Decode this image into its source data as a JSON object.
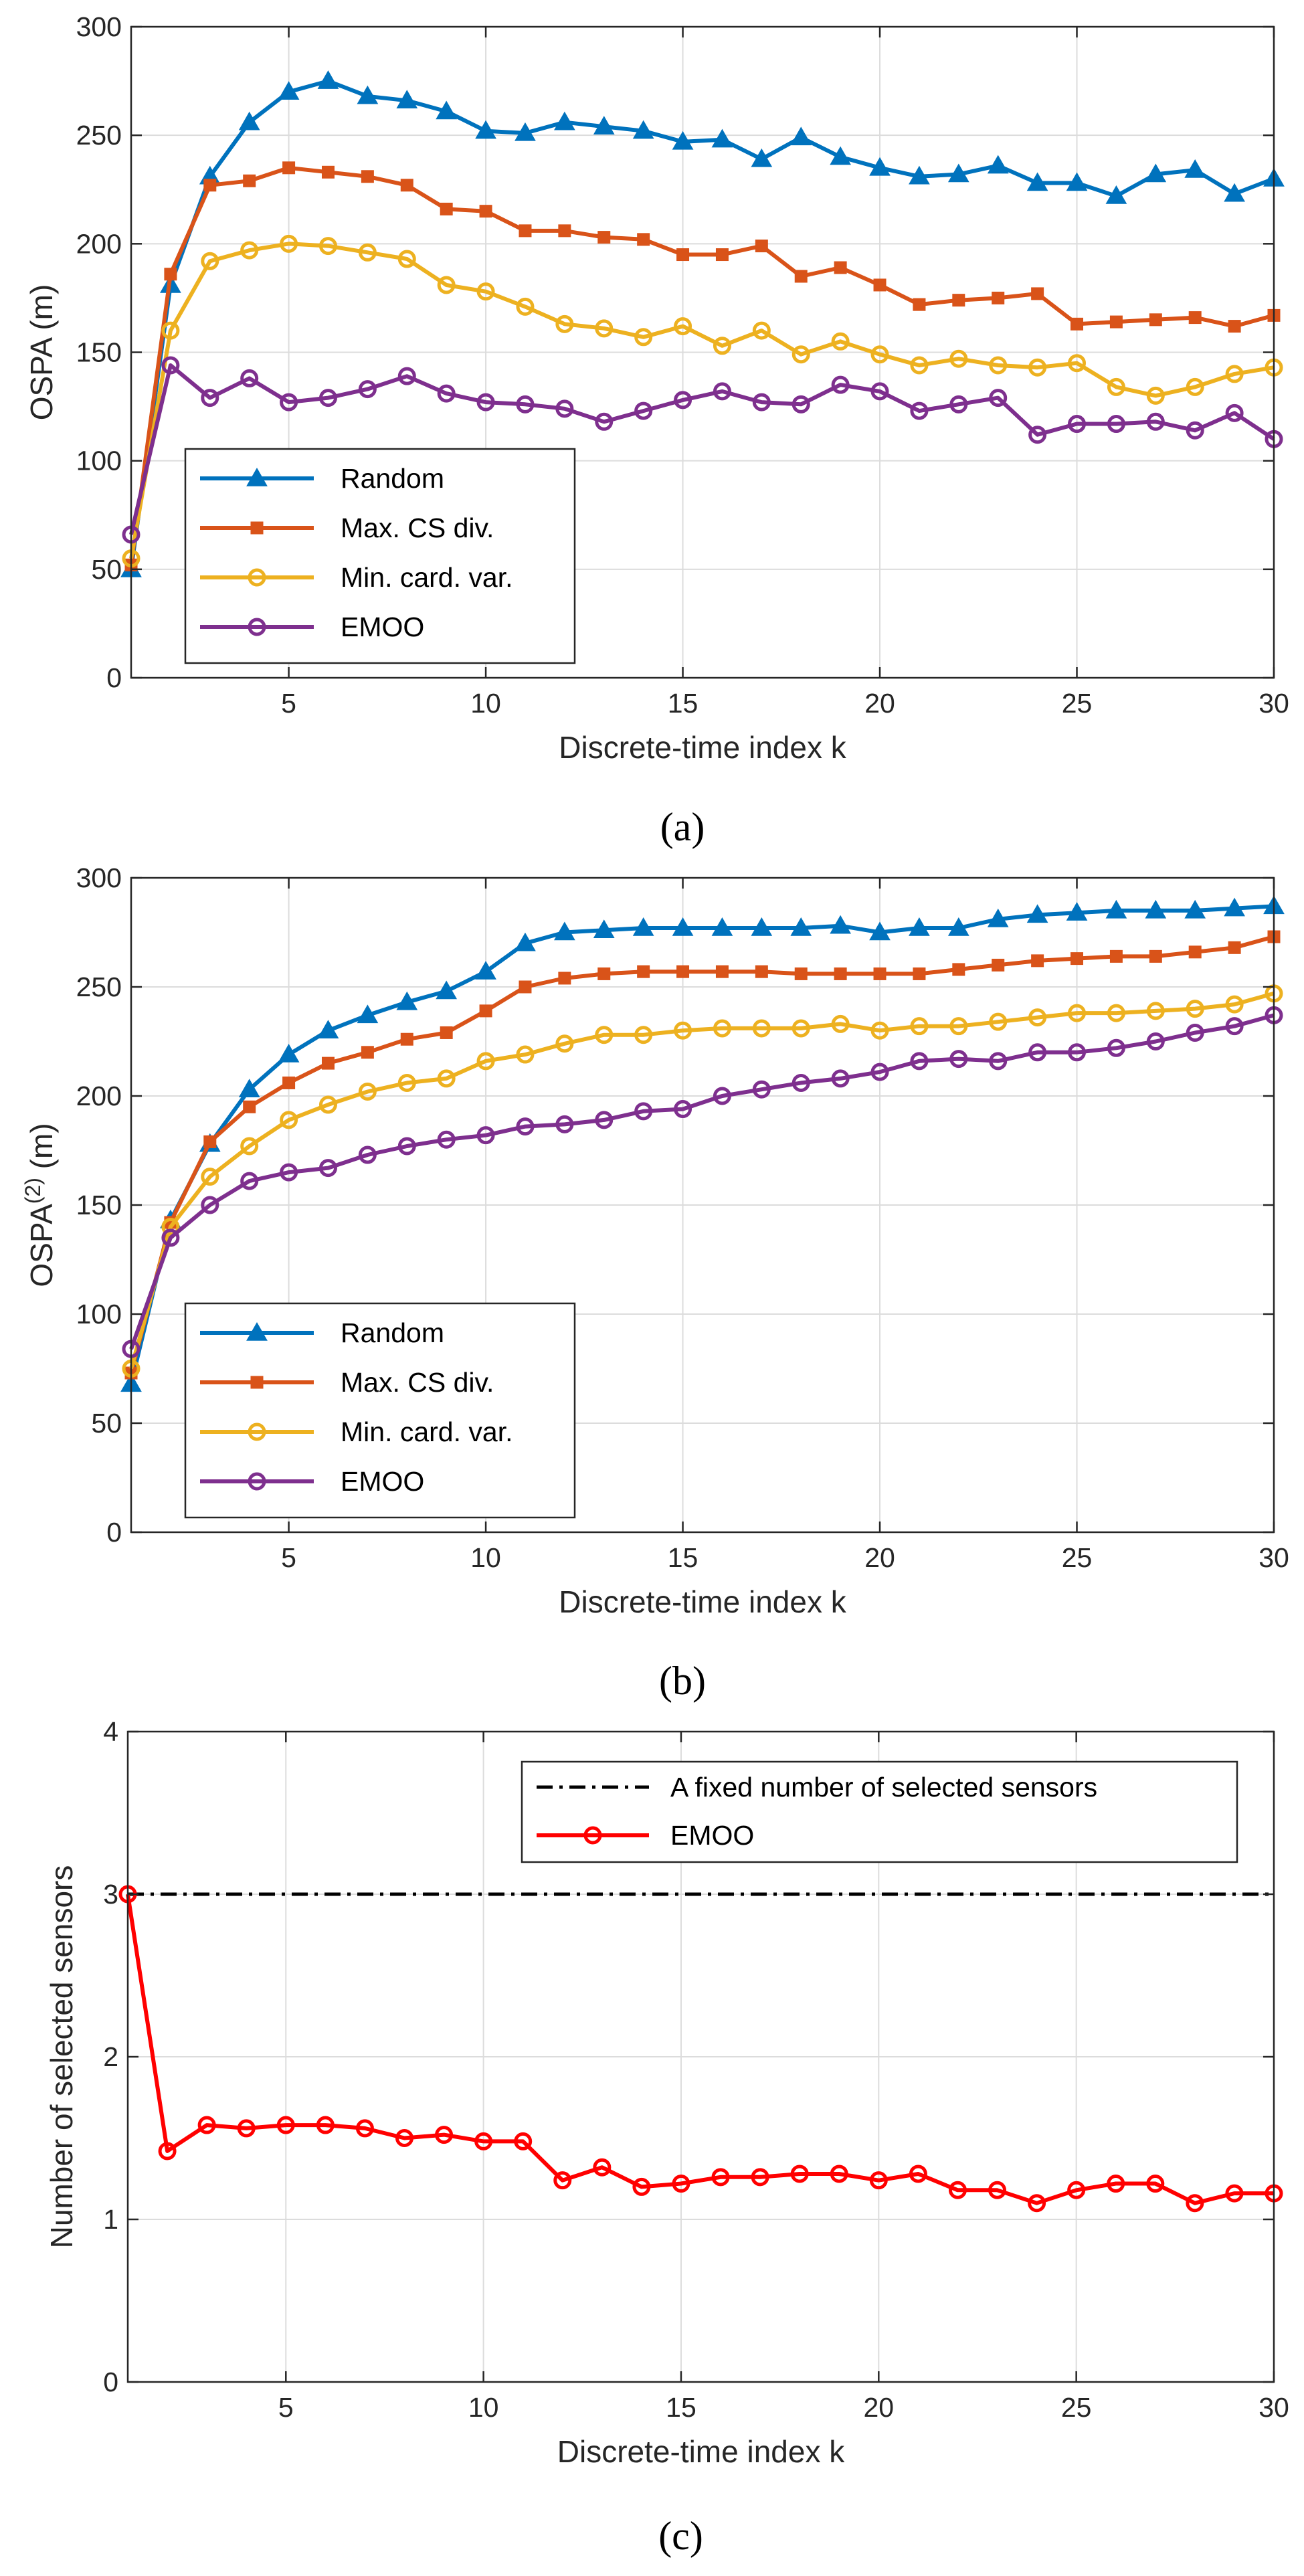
{
  "chart_data": [
    {
      "type": "line",
      "panel": "a",
      "caption": "(a)",
      "xlabel": "Discrete-time index k",
      "ylabel": "OSPA (m)",
      "xlim": [
        1,
        30
      ],
      "ylim": [
        0,
        300
      ],
      "xticks": [
        5,
        10,
        15,
        20,
        25,
        30
      ],
      "yticks": [
        0,
        50,
        100,
        150,
        200,
        250,
        300
      ],
      "grid": true,
      "legend_position": "lower-left",
      "x": [
        1,
        2,
        3,
        4,
        5,
        6,
        7,
        8,
        9,
        10,
        11,
        12,
        13,
        14,
        15,
        16,
        17,
        18,
        19,
        20,
        21,
        22,
        23,
        24,
        25,
        26,
        27,
        28,
        29,
        30
      ],
      "series": [
        {
          "name": "Random",
          "color": "#0072bd",
          "marker": "triangle",
          "values": [
            50,
            181,
            231,
            256,
            270,
            275,
            268,
            266,
            261,
            252,
            251,
            256,
            254,
            252,
            247,
            248,
            239,
            249,
            240,
            235,
            231,
            232,
            236,
            228,
            228,
            222,
            232,
            234,
            223,
            230
          ]
        },
        {
          "name": "Max. CS div.",
          "color": "#d95319",
          "marker": "square",
          "values": [
            52,
            186,
            227,
            229,
            235,
            233,
            231,
            227,
            216,
            215,
            206,
            206,
            203,
            202,
            195,
            195,
            199,
            185,
            189,
            181,
            172,
            174,
            175,
            177,
            163,
            164,
            165,
            166,
            162,
            167
          ]
        },
        {
          "name": "Min. card. var.",
          "color": "#edb120",
          "marker": "circle",
          "values": [
            55,
            160,
            192,
            197,
            200,
            199,
            196,
            193,
            181,
            178,
            171,
            163,
            161,
            157,
            162,
            153,
            160,
            149,
            155,
            149,
            144,
            147,
            144,
            143,
            145,
            134,
            130,
            134,
            140,
            143
          ]
        },
        {
          "name": "EMOO",
          "color": "#7e2f8e",
          "marker": "circle",
          "values": [
            66,
            144,
            129,
            138,
            127,
            129,
            133,
            139,
            131,
            127,
            126,
            124,
            118,
            123,
            128,
            132,
            127,
            126,
            135,
            132,
            123,
            126,
            129,
            112,
            117,
            117,
            118,
            114,
            122,
            110
          ]
        }
      ]
    },
    {
      "type": "line",
      "panel": "b",
      "caption": "(b)",
      "xlabel": "Discrete-time index k",
      "ylabel": "OSPA",
      "ylabel_superscript": "(2)",
      "ylabel_suffix": " (m)",
      "xlim": [
        1,
        30
      ],
      "ylim": [
        0,
        300
      ],
      "xticks": [
        5,
        10,
        15,
        20,
        25,
        30
      ],
      "yticks": [
        0,
        50,
        100,
        150,
        200,
        250,
        300
      ],
      "grid": true,
      "legend_position": "lower-left",
      "x": [
        1,
        2,
        3,
        4,
        5,
        6,
        7,
        8,
        9,
        10,
        11,
        12,
        13,
        14,
        15,
        16,
        17,
        18,
        19,
        20,
        21,
        22,
        23,
        24,
        25,
        26,
        27,
        28,
        29,
        30
      ],
      "series": [
        {
          "name": "Random",
          "color": "#0072bd",
          "marker": "triangle",
          "values": [
            68,
            143,
            178,
            203,
            219,
            230,
            237,
            243,
            248,
            257,
            270,
            275,
            276,
            277,
            277,
            277,
            277,
            277,
            278,
            275,
            277,
            277,
            281,
            283,
            284,
            285,
            285,
            285,
            286,
            287
          ]
        },
        {
          "name": "Max. CS div.",
          "color": "#d95319",
          "marker": "square",
          "values": [
            73,
            142,
            179,
            195,
            206,
            215,
            220,
            226,
            229,
            239,
            250,
            254,
            256,
            257,
            257,
            257,
            257,
            256,
            256,
            256,
            256,
            258,
            260,
            262,
            263,
            264,
            264,
            266,
            268,
            273
          ]
        },
        {
          "name": "Min. card. var.",
          "color": "#edb120",
          "marker": "circle",
          "values": [
            75,
            140,
            163,
            177,
            189,
            196,
            202,
            206,
            208,
            216,
            219,
            224,
            228,
            228,
            230,
            231,
            231,
            231,
            233,
            230,
            232,
            232,
            234,
            236,
            238,
            238,
            239,
            240,
            242,
            247
          ]
        },
        {
          "name": "EMOO",
          "color": "#7e2f8e",
          "marker": "circle",
          "values": [
            84,
            135,
            150,
            161,
            165,
            167,
            173,
            177,
            180,
            182,
            186,
            187,
            189,
            193,
            194,
            200,
            203,
            206,
            208,
            211,
            216,
            217,
            216,
            220,
            220,
            222,
            225,
            229,
            232,
            237
          ]
        }
      ]
    },
    {
      "type": "line",
      "panel": "c",
      "caption": "(c)",
      "xlabel": "Discrete-time index k",
      "ylabel": "Number of selected sensors",
      "xlim": [
        1,
        30
      ],
      "ylim": [
        0,
        4
      ],
      "xticks": [
        5,
        10,
        15,
        20,
        25,
        30
      ],
      "yticks": [
        0,
        1,
        2,
        3,
        4
      ],
      "grid": true,
      "legend_position": "top-right",
      "x": [
        1,
        2,
        3,
        4,
        5,
        6,
        7,
        8,
        9,
        10,
        11,
        12,
        13,
        14,
        15,
        16,
        17,
        18,
        19,
        20,
        21,
        22,
        23,
        24,
        25,
        26,
        27,
        28,
        29,
        30
      ],
      "series": [
        {
          "name": "A fixed number of selected sensors",
          "color": "#000000",
          "marker": "none",
          "style": "dashdot",
          "values": [
            3,
            3,
            3,
            3,
            3,
            3,
            3,
            3,
            3,
            3,
            3,
            3,
            3,
            3,
            3,
            3,
            3,
            3,
            3,
            3,
            3,
            3,
            3,
            3,
            3,
            3,
            3,
            3,
            3,
            3
          ]
        },
        {
          "name": "EMOO",
          "color": "#ff0000",
          "marker": "circle",
          "values": [
            3,
            1.42,
            1.58,
            1.56,
            1.58,
            1.58,
            1.56,
            1.5,
            1.52,
            1.48,
            1.48,
            1.24,
            1.32,
            1.2,
            1.22,
            1.26,
            1.26,
            1.28,
            1.28,
            1.24,
            1.28,
            1.18,
            1.18,
            1.1,
            1.18,
            1.22,
            1.22,
            1.1,
            1.16,
            1.16
          ]
        }
      ]
    }
  ]
}
